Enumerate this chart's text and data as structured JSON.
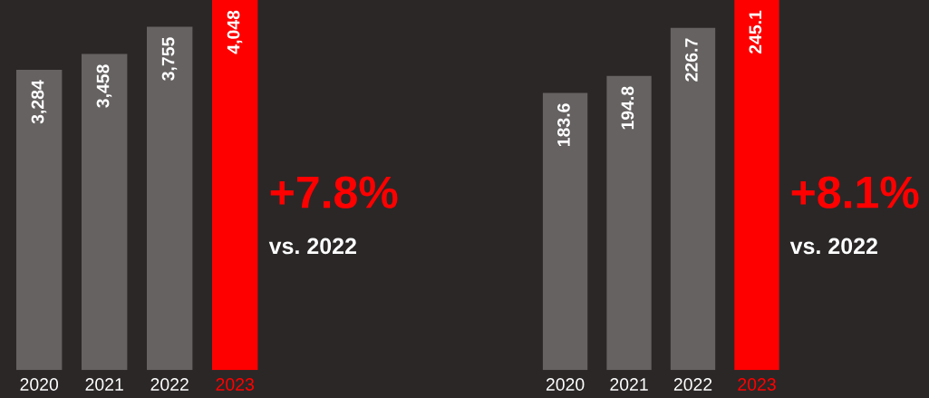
{
  "chart_data": [
    {
      "type": "bar",
      "categories": [
        "2020",
        "2021",
        "2022",
        "2023"
      ],
      "values": [
        3284,
        3458,
        3755,
        4048
      ],
      "colors": [
        "#666262",
        "#666262",
        "#666262",
        "#ff0000"
      ],
      "data_labels": true,
      "value_labels": [
        "3,284",
        "3,458",
        "3,755",
        "4,048"
      ],
      "tick_labels": "x",
      "annotations": [
        "+7.8%",
        "vs. 2022"
      ]
    },
    {
      "type": "bar",
      "categories": [
        "2020",
        "2021",
        "2022",
        "2023"
      ],
      "values": [
        183.6,
        194.8,
        226.7,
        245.1
      ],
      "colors": [
        "#666262",
        "#666262",
        "#666262",
        "#ff0000"
      ],
      "data_labels": true,
      "value_labels": [
        "183.6",
        "194.8",
        "226.7",
        "245.1"
      ],
      "tick_labels": "x",
      "annotations": [
        "+8.1%",
        "vs. 2022"
      ]
    }
  ]
}
